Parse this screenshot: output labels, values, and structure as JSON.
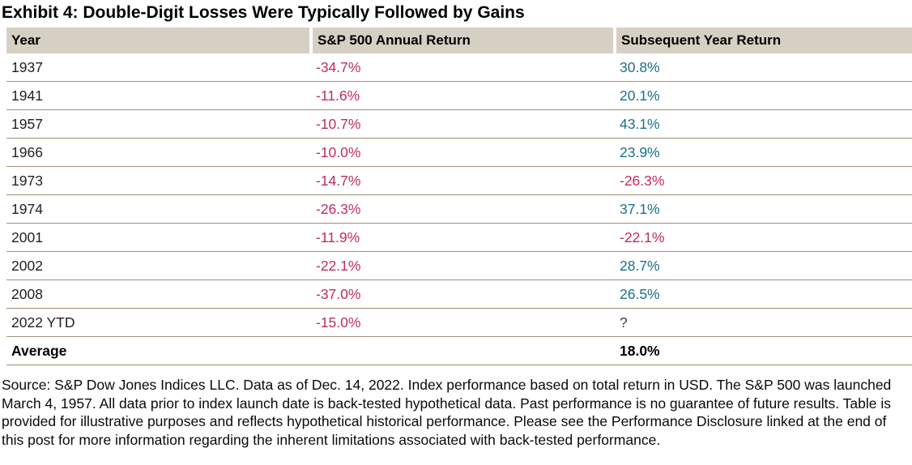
{
  "title": "Exhibit 4: Double-Digit Losses Were Typically Followed by Gains",
  "table": {
    "columns": [
      "Year",
      "S&P 500 Annual Return",
      "Subsequent Year Return"
    ],
    "rows": [
      {
        "year": "1937",
        "annual": "-34.7%",
        "subsequent": "30.8%"
      },
      {
        "year": "1941",
        "annual": "-11.6%",
        "subsequent": "20.1%"
      },
      {
        "year": "1957",
        "annual": "-10.7%",
        "subsequent": "43.1%"
      },
      {
        "year": "1966",
        "annual": "-10.0%",
        "subsequent": "23.9%"
      },
      {
        "year": "1973",
        "annual": "-14.7%",
        "subsequent": "-26.3%"
      },
      {
        "year": "1974",
        "annual": "-26.3%",
        "subsequent": "37.1%"
      },
      {
        "year": "2001",
        "annual": "-11.9%",
        "subsequent": "-22.1%"
      },
      {
        "year": "2002",
        "annual": "-22.1%",
        "subsequent": "28.7%"
      },
      {
        "year": "2008",
        "annual": "-37.0%",
        "subsequent": "26.5%"
      },
      {
        "year": "2022 YTD",
        "annual": "-15.0%",
        "subsequent": "?"
      }
    ],
    "average": {
      "label": "Average",
      "annual": "",
      "subsequent": "18.0%"
    }
  },
  "chart_data": {
    "type": "table",
    "title": "Exhibit 4: Double-Digit Losses Were Typically Followed by Gains",
    "columns": [
      "Year",
      "S&P 500 Annual Return",
      "Subsequent Year Return"
    ],
    "rows": [
      [
        "1937",
        "-34.7%",
        "30.8%"
      ],
      [
        "1941",
        "-11.6%",
        "20.1%"
      ],
      [
        "1957",
        "-10.7%",
        "43.1%"
      ],
      [
        "1966",
        "-10.0%",
        "23.9%"
      ],
      [
        "1973",
        "-14.7%",
        "-26.3%"
      ],
      [
        "1974",
        "-26.3%",
        "37.1%"
      ],
      [
        "2001",
        "-11.9%",
        "-22.1%"
      ],
      [
        "2002",
        "-22.1%",
        "28.7%"
      ],
      [
        "2008",
        "-37.0%",
        "26.5%"
      ],
      [
        "2022 YTD",
        "-15.0%",
        "?"
      ],
      [
        "Average",
        "",
        "18.0%"
      ]
    ]
  },
  "footer": "Source: S&P Dow Jones Indices LLC. Data as of Dec. 14, 2022. Index performance based on total return in USD. The S&P 500 was launched March 4, 1957. All data prior to index launch date is back-tested hypothetical data. Past performance is no guarantee of future results. Table is provided for illustrative purposes and reflects hypothetical historical performance. Please see the Performance Disclosure linked at the end of this post for more information regarding the inherent limitations associated with back-tested performance.",
  "colors": {
    "negative": "#c22a63",
    "positive": "#17708d",
    "neutral": "#3c3c3c",
    "header_bg": "#d6d0c4",
    "row_border": "#9d9176"
  }
}
